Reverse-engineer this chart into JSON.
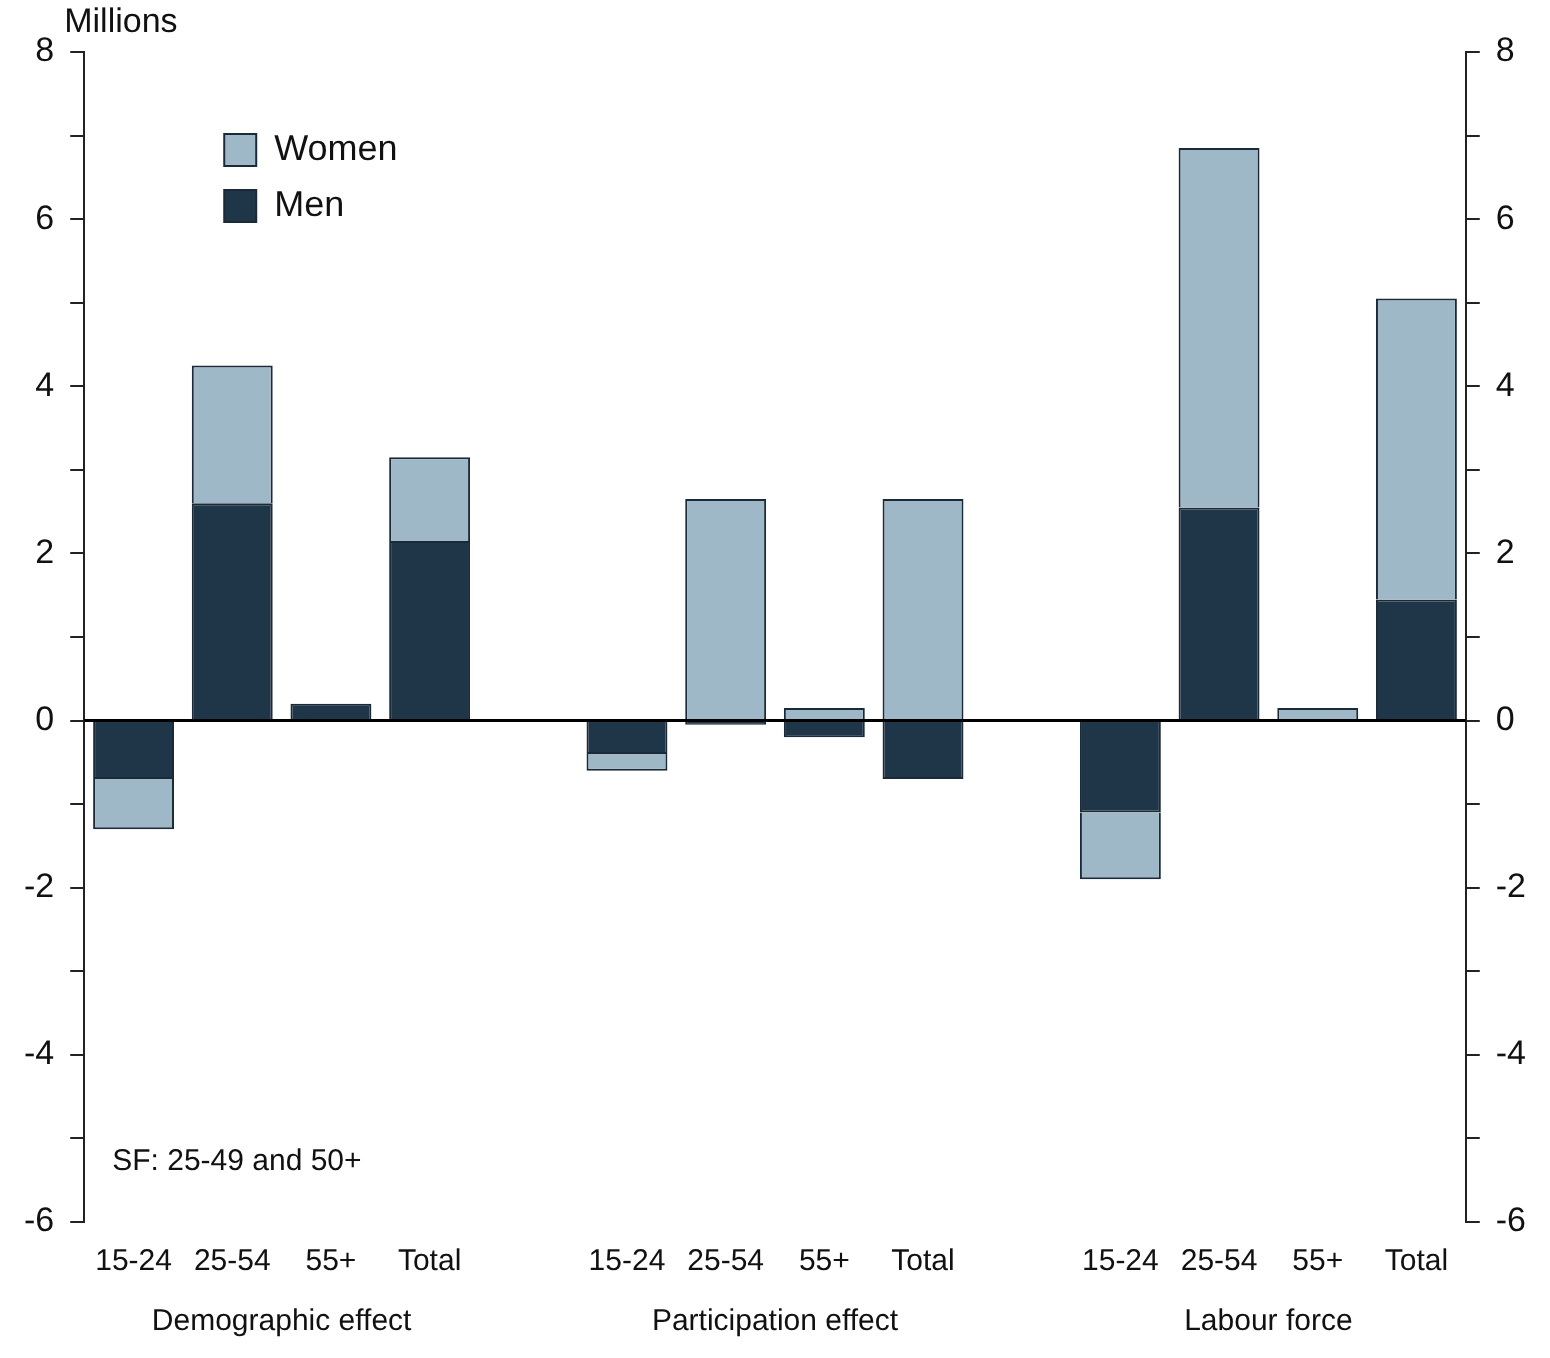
{
  "chart_data": {
    "type": "bar",
    "stacked": true,
    "ylabel": "Millions",
    "categories": [
      "15-24",
      "25-54",
      "55+",
      "Total",
      null,
      "15-24",
      "25-54",
      "55+",
      "Total",
      null,
      "15-24",
      "25-54",
      "55+",
      "Total"
    ],
    "series": [
      {
        "name": "Men",
        "color": "#1f3548",
        "values": [
          -0.7,
          2.6,
          0.2,
          2.15,
          null,
          -0.4,
          -0.05,
          -0.2,
          -0.7,
          null,
          -1.1,
          2.55,
          0,
          1.45
        ]
      },
      {
        "name": "Women",
        "color": "#9fb8c8",
        "values": [
          -0.6,
          1.65,
          0,
          1.0,
          null,
          -0.2,
          2.65,
          0.15,
          2.65,
          null,
          -0.8,
          4.3,
          0.15,
          3.6
        ]
      }
    ],
    "ylim": [
      -6,
      8
    ],
    "yticks": [
      -6,
      {
        "value": -5,
        "label": null
      },
      -4,
      {
        "value": -3,
        "label": null
      },
      -2,
      {
        "value": -1,
        "label": null
      },
      0,
      {
        "value": 1,
        "label": null
      },
      2,
      {
        "value": 3,
        "label": null
      },
      4,
      {
        "value": 5,
        "label": null
      },
      6,
      {
        "value": 7,
        "label": null
      },
      8
    ],
    "y2lim": [
      -6,
      8
    ],
    "y2ticks": [
      -6,
      {
        "value": -5,
        "label": null
      },
      -4,
      {
        "value": -3,
        "label": null
      },
      -2,
      {
        "value": -1,
        "label": null
      },
      0,
      {
        "value": 1,
        "label": null
      },
      2,
      {
        "value": 3,
        "label": null
      },
      4,
      {
        "value": 5,
        "label": null
      },
      6,
      {
        "value": 7,
        "label": null
      },
      8
    ],
    "ref_lines": [
      {
        "axis": "y",
        "value": 0,
        "color": "#000000"
      }
    ],
    "grid": false,
    "legend": "top left",
    "annotations": [
      "Demographic effect",
      "Participation effect",
      "Labour force",
      "SF: 25-49 and 50+"
    ]
  }
}
